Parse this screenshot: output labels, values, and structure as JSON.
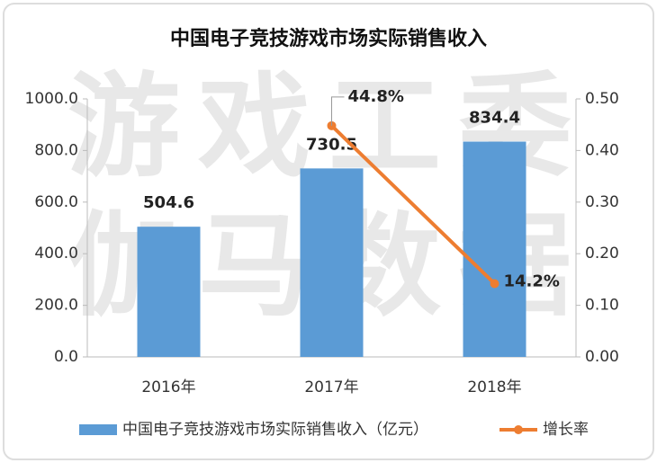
{
  "chart_data": {
    "type": "bar",
    "title": "中国电子竞技游戏市场实际销售收入",
    "watermark": [
      "游戏工委",
      "伽马数据"
    ],
    "categories": [
      "2016年",
      "2017年",
      "2018年"
    ],
    "series": [
      {
        "name": "中国电子竞技游戏市场实际销售收入（亿元）",
        "type": "bar",
        "color": "#5b9bd5",
        "values": [
          504.6,
          730.5,
          834.4
        ]
      },
      {
        "name": "增长率",
        "type": "line",
        "axis": "y2",
        "color": "#ed7d31",
        "values": [
          null,
          0.448,
          0.142
        ],
        "value_labels": [
          null,
          "44.8%",
          "14.2%"
        ]
      }
    ],
    "ylim": [
      0,
      1000
    ],
    "yticks": [
      {
        "value": 0,
        "label": "0.0"
      },
      {
        "value": 200,
        "label": "200.0"
      },
      {
        "value": 400,
        "label": "400.0"
      },
      {
        "value": 600,
        "label": "600.0"
      },
      {
        "value": 800,
        "label": "800.0"
      },
      {
        "value": 1000,
        "label": "1000.0"
      }
    ],
    "y2lim": [
      0,
      0.5
    ],
    "y2ticks": [
      {
        "value": 0,
        "label": "0.00"
      },
      {
        "value": 0.1,
        "label": "0.10"
      },
      {
        "value": 0.2,
        "label": "0.20"
      },
      {
        "value": 0.3,
        "label": "0.30"
      },
      {
        "value": 0.4,
        "label": "0.40"
      },
      {
        "value": 0.5,
        "label": "0.50"
      }
    ],
    "legend": "bottom"
  }
}
